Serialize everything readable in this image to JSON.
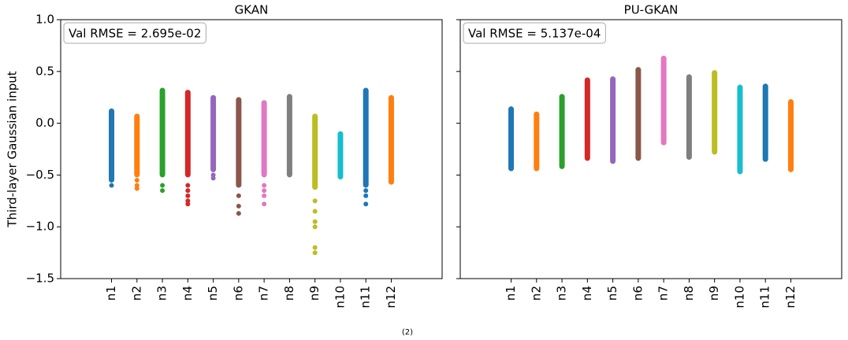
{
  "chart_data": [
    {
      "type": "strip",
      "title": "GKAN",
      "annotation": "Val RMSE = 2.695e-02",
      "ylabel": "Third-layer Gaussian input",
      "categories": [
        "n1",
        "n2",
        "n3",
        "n4",
        "n5",
        "n6",
        "n7",
        "n8",
        "n9",
        "n10",
        "n11",
        "n12"
      ],
      "colors": [
        "#1f77b4",
        "#ff7f0e",
        "#2ca02c",
        "#d62728",
        "#9467bd",
        "#8c564b",
        "#e377c2",
        "#7f7f7f",
        "#bcbd22",
        "#17becf",
        "#1f77b4",
        "#ff7f0e"
      ],
      "ranges": [
        [
          -0.55,
          0.12
        ],
        [
          -0.5,
          0.07
        ],
        [
          -0.5,
          0.32
        ],
        [
          -0.5,
          0.3
        ],
        [
          -0.45,
          0.25
        ],
        [
          -0.6,
          0.23
        ],
        [
          -0.5,
          0.2
        ],
        [
          -0.5,
          0.26
        ],
        [
          -0.62,
          0.07
        ],
        [
          -0.52,
          -0.1
        ],
        [
          -0.6,
          0.32
        ],
        [
          -0.57,
          0.25
        ]
      ],
      "outliers": [
        [
          -0.6
        ],
        [
          -0.55,
          -0.6,
          -0.63
        ],
        [
          -0.6,
          -0.65
        ],
        [
          -0.6,
          -0.65,
          -0.7,
          -0.75,
          -0.78
        ],
        [
          -0.5,
          -0.53
        ],
        [
          -0.7,
          -0.8,
          -0.87
        ],
        [
          -0.6,
          -0.65,
          -0.7,
          -0.78
        ],
        [],
        [
          -0.75,
          -0.85,
          -0.95,
          -1.0,
          -1.2,
          -1.25
        ],
        [],
        [
          -0.65,
          -0.7,
          -0.78
        ],
        []
      ],
      "ylim": [
        -1.5,
        1.0
      ],
      "yticks": [
        {
          "value": -1.5,
          "label": "−1.5"
        },
        {
          "value": -1.0,
          "label": "−1.0"
        },
        {
          "value": -0.5,
          "label": "−0.5"
        },
        {
          "value": 0.0,
          "label": "0.0"
        },
        0.5,
        {
          "value": 1.0,
          "label": "1.0"
        }
      ]
    },
    {
      "type": "strip",
      "title": "PU-GKAN",
      "annotation": "Val RMSE = 5.137e-04",
      "categories": [
        "n1",
        "n2",
        "n3",
        "n4",
        "n5",
        "n6",
        "n7",
        "n8",
        "n9",
        "n10",
        "n11",
        "n12"
      ],
      "colors": [
        "#1f77b4",
        "#ff7f0e",
        "#2ca02c",
        "#d62728",
        "#9467bd",
        "#8c564b",
        "#e377c2",
        "#7f7f7f",
        "#bcbd22",
        "#17becf",
        "#1f77b4",
        "#ff7f0e"
      ],
      "ranges": [
        [
          -0.44,
          0.14
        ],
        [
          -0.44,
          0.09
        ],
        [
          -0.42,
          0.26
        ],
        [
          -0.34,
          0.42
        ],
        [
          -0.37,
          0.43
        ],
        [
          -0.34,
          0.52
        ],
        [
          -0.19,
          0.63
        ],
        [
          -0.33,
          0.45
        ],
        [
          -0.28,
          0.49
        ],
        [
          -0.47,
          0.35
        ],
        [
          -0.35,
          0.36
        ],
        [
          -0.45,
          0.21
        ]
      ],
      "outliers": [
        [],
        [],
        [],
        [],
        [],
        [],
        [],
        [],
        [],
        [],
        [],
        []
      ],
      "ylim": [
        -1.5,
        1.0
      ],
      "yticks": [
        -1.5,
        -1.0,
        -0.5,
        0.0,
        0.5,
        1.0
      ]
    }
  ],
  "caption": "(2)"
}
